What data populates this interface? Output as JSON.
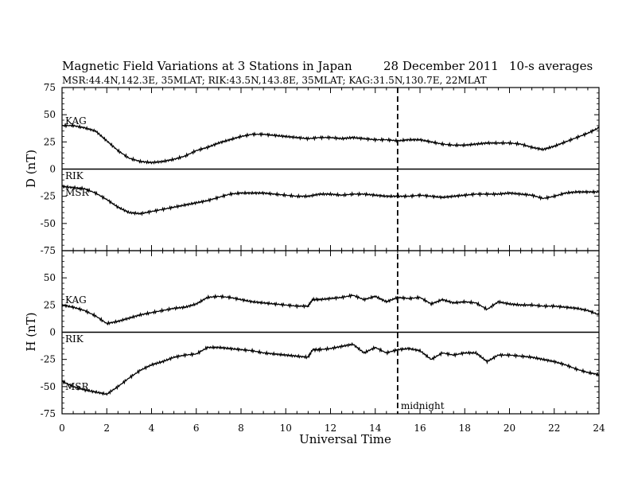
{
  "title": {
    "main": "Magnetic Field Variations at 3 Stations in Japan",
    "date": "28 December 2011",
    "averaging": "10-s averages"
  },
  "subtitle": "MSR:44.4N,142.3E, 35MLAT;  RIK:43.5N,143.8E, 35MLAT;  KAG:31.5N,130.7E, 22MLAT",
  "xlabel": "Universal Time",
  "midnight_label": "midnight",
  "chart_data": {
    "type": "line",
    "xlim": [
      0,
      24
    ],
    "x_ticks": [
      0,
      2,
      4,
      6,
      8,
      10,
      12,
      14,
      16,
      18,
      20,
      22,
      24
    ],
    "midnight_ut": 15,
    "panels": [
      {
        "ylabel": "D (nT)",
        "ylim": [
          -75,
          75
        ],
        "y_ticks": [
          75,
          50,
          25,
          0,
          -25,
          -50,
          -75
        ],
        "zero_line": true,
        "series": [
          {
            "name": "KAG",
            "x": [
              0,
              0.5,
              1,
              1.5,
              2,
              2.5,
              3,
              3.5,
              4,
              4.5,
              5,
              5.5,
              6,
              6.5,
              7,
              7.5,
              8,
              8.5,
              9,
              9.5,
              10,
              10.5,
              11,
              11.5,
              12,
              12.5,
              13,
              13.5,
              14,
              14.5,
              15,
              15.5,
              16,
              16.5,
              17,
              17.5,
              18,
              18.5,
              19,
              19.5,
              20,
              20.5,
              21,
              21.5,
              22,
              22.5,
              23,
              23.5,
              24
            ],
            "values": [
              40,
              40,
              38,
              35,
              26,
              17,
              10,
              7,
              6,
              7,
              9,
              12,
              17,
              20,
              24,
              27,
              30,
              32,
              32,
              31,
              30,
              29,
              28,
              29,
              29,
              28,
              29,
              28,
              27,
              27,
              26,
              27,
              27,
              25,
              23,
              22,
              22,
              23,
              24,
              24,
              24,
              23,
              20,
              18,
              21,
              25,
              29,
              33,
              38
            ]
          },
          {
            "name": "RIK",
            "x": [],
            "values": []
          },
          {
            "name": "MSR",
            "x": [
              0,
              0.5,
              1,
              1.5,
              2,
              2.5,
              3,
              3.5,
              4,
              4.5,
              5,
              5.5,
              6,
              6.5,
              7,
              7.5,
              8,
              8.5,
              9,
              9.5,
              10,
              10.5,
              11,
              11.5,
              12,
              12.5,
              13,
              13.5,
              14,
              14.5,
              15,
              15.5,
              16,
              16.5,
              17,
              17.5,
              18,
              18.5,
              19,
              19.5,
              20,
              20.5,
              21,
              21.5,
              22,
              22.5,
              23,
              23.5,
              24
            ],
            "values": [
              -16,
              -17,
              -18,
              -22,
              -28,
              -35,
              -40,
              -41,
              -39,
              -37,
              -35,
              -33,
              -31,
              -29,
              -26,
              -23,
              -22,
              -22,
              -22,
              -23,
              -24,
              -25,
              -25,
              -23,
              -23,
              -24,
              -23,
              -23,
              -24,
              -25,
              -25,
              -25,
              -24,
              -25,
              -26,
              -25,
              -24,
              -23,
              -23,
              -23,
              -22,
              -23,
              -24,
              -27,
              -25,
              -22,
              -21,
              -21,
              -21
            ]
          }
        ]
      },
      {
        "ylabel": "H (nT)",
        "ylim": [
          -75,
          75
        ],
        "y_ticks": [
          75,
          50,
          25,
          0,
          -25,
          -50,
          -75
        ],
        "zero_line": true,
        "series": [
          {
            "name": "KAG",
            "x": [
              0,
              0.5,
              1,
              1.5,
              2,
              2.5,
              3,
              3.5,
              4,
              4.5,
              5,
              5.5,
              6,
              6.5,
              7,
              7.5,
              8,
              8.5,
              9,
              9.5,
              10,
              10.5,
              11,
              11.2,
              11.5,
              12,
              12.5,
              13,
              13.5,
              14,
              14.5,
              15,
              15.5,
              16,
              16.5,
              17,
              17.5,
              18,
              18.5,
              19,
              19.5,
              20,
              20.5,
              21,
              21.5,
              22,
              22.5,
              23,
              23.5,
              24
            ],
            "values": [
              25,
              23,
              20,
              15,
              8,
              10,
              13,
              16,
              18,
              20,
              22,
              23,
              26,
              32,
              33,
              32,
              30,
              28,
              27,
              26,
              25,
              24,
              24,
              30,
              30,
              31,
              32,
              34,
              30,
              33,
              28,
              32,
              31,
              32,
              26,
              30,
              27,
              28,
              27,
              21,
              28,
              26,
              25,
              25,
              24,
              24,
              23,
              22,
              20,
              16
            ]
          },
          {
            "name": "RIK",
            "x": [],
            "values": []
          },
          {
            "name": "MSR",
            "x": [
              0,
              0.5,
              1,
              1.5,
              2,
              2.5,
              3,
              3.5,
              4,
              4.5,
              5,
              5.5,
              6,
              6.5,
              7,
              7.5,
              8,
              8.5,
              9,
              9.5,
              10,
              10.5,
              11,
              11.2,
              11.5,
              12,
              12.5,
              13,
              13.5,
              14,
              14.5,
              15,
              15.5,
              16,
              16.5,
              17,
              17.5,
              18,
              18.5,
              19,
              19.5,
              20,
              20.5,
              21,
              21.5,
              22,
              22.5,
              23,
              23.5,
              24
            ],
            "values": [
              -45,
              -50,
              -53,
              -55,
              -57,
              -50,
              -42,
              -35,
              -30,
              -27,
              -23,
              -21,
              -20,
              -14,
              -14,
              -15,
              -16,
              -17,
              -19,
              -20,
              -21,
              -22,
              -23,
              -16,
              -16,
              -15,
              -13,
              -11,
              -19,
              -14,
              -19,
              -16,
              -15,
              -17,
              -25,
              -19,
              -21,
              -19,
              -19,
              -27,
              -21,
              -21,
              -22,
              -23,
              -25,
              -27,
              -30,
              -34,
              -37,
              -39
            ]
          }
        ]
      }
    ]
  }
}
